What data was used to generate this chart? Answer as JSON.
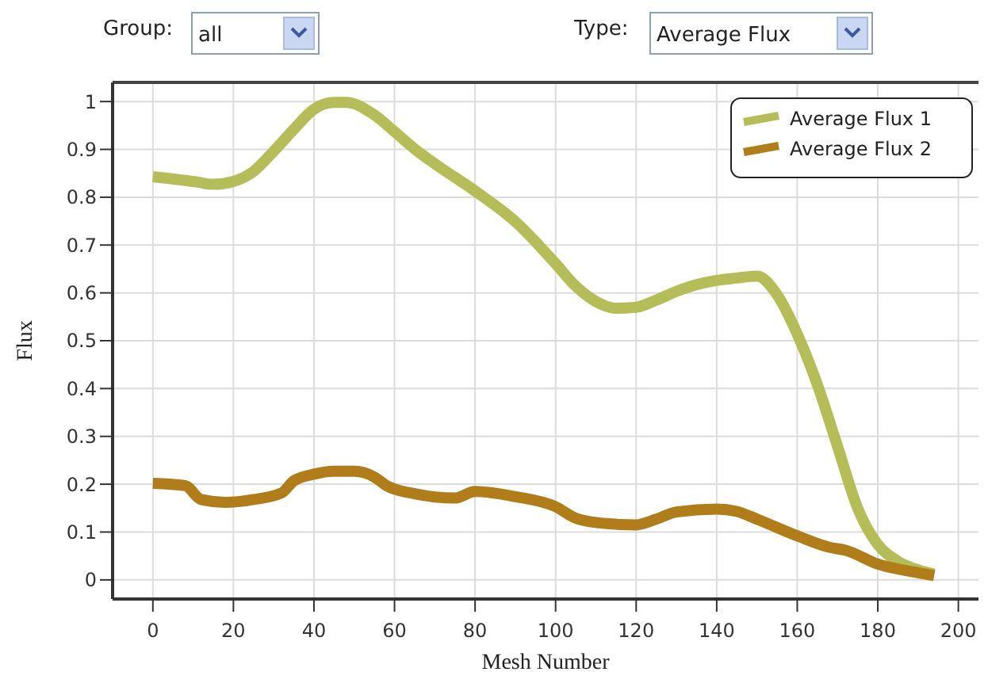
{
  "chart_data": {
    "type": "line",
    "xlabel": "Mesh Number",
    "ylabel": "Flux",
    "annotations": [
      "Group:",
      "all",
      "Type:",
      "Average Flux"
    ],
    "xlim": [
      -10,
      205
    ],
    "ylim": [
      -0.04,
      1.04
    ],
    "xticks": [
      0,
      20,
      40,
      60,
      80,
      100,
      120,
      140,
      160,
      180,
      200
    ],
    "yticks": [
      0,
      0.1,
      0.2,
      0.3,
      0.4,
      0.5,
      0.6,
      0.7,
      0.8,
      0.9,
      1
    ],
    "grid": true,
    "legend": "top right",
    "line_style": "solid",
    "series": [
      {
        "name": "Average Flux 1",
        "color": "#b5bd58",
        "x": [
          0,
          10,
          15,
          20,
          25,
          30,
          35,
          40,
          45,
          48,
          55,
          60,
          65,
          70,
          80,
          90,
          100,
          105,
          110,
          115,
          120,
          125,
          130,
          135,
          140,
          145,
          150,
          155,
          160,
          165,
          170,
          175,
          180,
          185,
          190,
          194
        ],
        "values": [
          0.843,
          0.833,
          0.827,
          0.833,
          0.854,
          0.896,
          0.942,
          0.984,
          0.998,
          0.998,
          0.972,
          0.937,
          0.901,
          0.87,
          0.813,
          0.749,
          0.661,
          0.614,
          0.582,
          0.568,
          0.57,
          0.585,
          0.603,
          0.617,
          0.626,
          0.631,
          0.635,
          0.596,
          0.514,
          0.408,
          0.279,
          0.15,
          0.074,
          0.039,
          0.021,
          0.012
        ]
      },
      {
        "name": "Average Flux 2",
        "color": "#b07d1a",
        "x": [
          0,
          8,
          12,
          18,
          25,
          32,
          35,
          40,
          45,
          50,
          55,
          58,
          65,
          75,
          80,
          90,
          100,
          105,
          110,
          120,
          125,
          130,
          140,
          145,
          150,
          160,
          168,
          172,
          180,
          190,
          194
        ],
        "values": [
          0.202,
          0.197,
          0.168,
          0.162,
          0.168,
          0.182,
          0.207,
          0.221,
          0.227,
          0.227,
          0.215,
          0.197,
          0.18,
          0.171,
          0.185,
          0.174,
          0.153,
          0.129,
          0.12,
          0.115,
          0.127,
          0.142,
          0.148,
          0.143,
          0.127,
          0.092,
          0.068,
          0.062,
          0.033,
          0.015,
          0.009
        ]
      }
    ]
  }
}
